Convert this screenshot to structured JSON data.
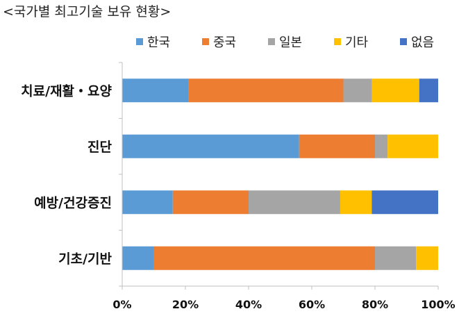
{
  "chart_data": {
    "type": "bar",
    "orientation": "horizontal",
    "stacked": "percent",
    "title": "<국가별 최고기술 보유 현황>",
    "categories": [
      "치료/재활・요양",
      "진단",
      "예방/건강증진",
      "기초/기반"
    ],
    "series": [
      {
        "name": "한국",
        "color": "#5B9BD5",
        "values": [
          21,
          56,
          16,
          10
        ]
      },
      {
        "name": "중국",
        "color": "#ED7D31",
        "values": [
          49,
          24,
          24,
          70
        ]
      },
      {
        "name": "일본",
        "color": "#A5A5A5",
        "values": [
          9,
          4,
          29,
          13
        ]
      },
      {
        "name": "기타",
        "color": "#FFC000",
        "values": [
          15,
          16,
          10,
          7
        ]
      },
      {
        "name": "없음",
        "color": "#4472C4",
        "values": [
          6,
          0,
          21,
          0
        ]
      }
    ],
    "xlim": [
      0,
      100
    ],
    "xticks": [
      "0%",
      "20%",
      "40%",
      "60%",
      "80%",
      "100%"
    ],
    "xlabel": "",
    "ylabel": "",
    "legend_position": "top",
    "grid": false
  }
}
